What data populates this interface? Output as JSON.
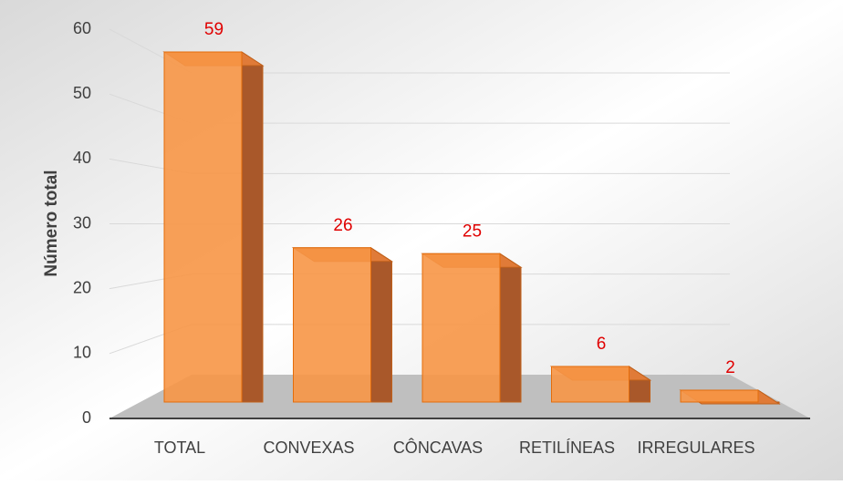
{
  "chart_data": {
    "type": "bar3d",
    "y_label": "Número total",
    "categories": [
      "TOTAL",
      "CONVEXAS",
      "CÔNCAVAS",
      "RETILÍNEAS",
      "IRREGULARES"
    ],
    "values": [
      59,
      26,
      25,
      6,
      2
    ],
    "color": "#f79646",
    "label_color": "#e00000",
    "ylim": [
      0,
      60
    ],
    "yticks": [
      0,
      10,
      20,
      30,
      40,
      50,
      60
    ],
    "grid": true
  }
}
